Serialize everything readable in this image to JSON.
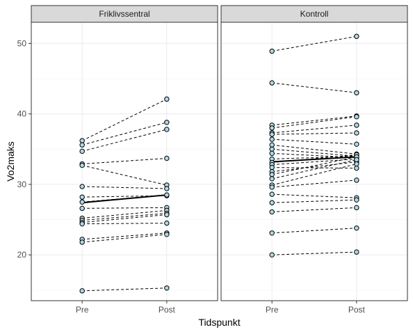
{
  "chart_data": {
    "type": "line",
    "xlabel": "Tidspunkt",
    "ylabel": "Vo2maks",
    "categories": [
      "Pre",
      "Post"
    ],
    "ylim": [
      13.5,
      53
    ],
    "yticks": [
      20,
      30,
      40,
      50
    ],
    "grid": true,
    "colors": {
      "point_fill": "#add8e6",
      "line": "#000000",
      "strip": "#d9d9d9"
    },
    "panels": [
      {
        "name": "Friklivssentral",
        "mean": [
          27.4,
          28.5
        ],
        "series": [
          [
            36.2,
            42.1
          ],
          [
            35.6,
            38.8
          ],
          [
            34.7,
            37.8
          ],
          [
            32.9,
            33.7
          ],
          [
            32.7,
            29.9
          ],
          [
            29.7,
            29.4
          ],
          [
            28.2,
            28.4
          ],
          [
            27.5,
            28.5
          ],
          [
            26.6,
            26.7
          ],
          [
            25.2,
            26.3
          ],
          [
            24.9,
            25.9
          ],
          [
            24.6,
            25.7
          ],
          [
            24.4,
            24.5
          ],
          [
            22.2,
            23.1
          ],
          [
            21.8,
            22.9
          ],
          [
            14.9,
            15.3
          ]
        ]
      },
      {
        "name": "Kontroll",
        "mean": [
          33.2,
          33.9
        ],
        "series": [
          [
            48.9,
            51.0
          ],
          [
            44.4,
            43.0
          ],
          [
            38.4,
            39.7
          ],
          [
            38.0,
            39.6
          ],
          [
            37.3,
            38.4
          ],
          [
            37.1,
            37.3
          ],
          [
            36.4,
            35.7
          ],
          [
            35.6,
            34.3
          ],
          [
            35.0,
            34.0
          ],
          [
            34.4,
            33.8
          ],
          [
            33.6,
            34.0
          ],
          [
            33.1,
            34.2
          ],
          [
            32.8,
            33.6
          ],
          [
            32.4,
            32.3
          ],
          [
            31.8,
            33.2
          ],
          [
            31.4,
            33.9
          ],
          [
            30.8,
            33.5
          ],
          [
            29.9,
            32.9
          ],
          [
            29.6,
            30.6
          ],
          [
            28.6,
            28.1
          ],
          [
            27.4,
            27.8
          ],
          [
            26.1,
            26.7
          ],
          [
            23.1,
            23.8
          ],
          [
            20.0,
            20.4
          ]
        ]
      }
    ]
  }
}
